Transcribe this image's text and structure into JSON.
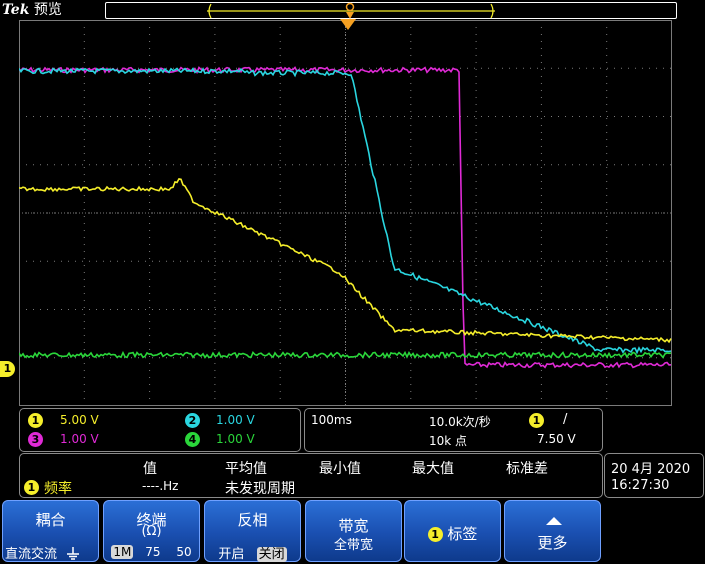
{
  "header": {
    "brand": "Tek",
    "mode": "预览"
  },
  "colors": {
    "ch1": "#f5ee2b",
    "ch2": "#2ad6e0",
    "ch3": "#e02ad6",
    "ch4": "#2ad63a",
    "menu_bg": "#1a4fb0",
    "grid": "#7a7a7a"
  },
  "channel_marker": "1",
  "channels": [
    {
      "id": "1",
      "scale": "5.00 V",
      "color": "#f5ee2b"
    },
    {
      "id": "2",
      "scale": "1.00 V",
      "color": "#2ad6e0"
    },
    {
      "id": "3",
      "scale": "1.00 V",
      "color": "#e02ad6"
    },
    {
      "id": "4",
      "scale": "1.00 V",
      "color": "#2ad63a"
    }
  ],
  "acquisition": {
    "timebase": "100ms",
    "sample_rate": "10.0k次/秒",
    "record_length": "10k 点",
    "trigger_channel": "1",
    "trigger_slope": "/",
    "trigger_level": "7.50 V"
  },
  "measurement": {
    "headers": [
      "值",
      "平均值",
      "最小值",
      "最大值",
      "标准差"
    ],
    "badge": "1",
    "name": "频率",
    "value": "----.Hz",
    "status": "未发现周期"
  },
  "datetime": {
    "date": "20 4月  2020",
    "time": "16:27:30"
  },
  "menu": {
    "coupling": {
      "title": "耦合",
      "opt1": "直流",
      "opt2": "交流",
      "icon": "ground-icon"
    },
    "termination": {
      "title": "终端",
      "unit": "(Ω)",
      "o1": "1M",
      "o2": "75",
      "o3": "50"
    },
    "invert": {
      "title": "反相",
      "o1": "开启",
      "o2": "关闭"
    },
    "bandwidth": {
      "title": "带宽",
      "value": "全带宽"
    },
    "label": {
      "badge": "1",
      "title": "标签"
    },
    "more": {
      "title": "更多"
    }
  }
}
